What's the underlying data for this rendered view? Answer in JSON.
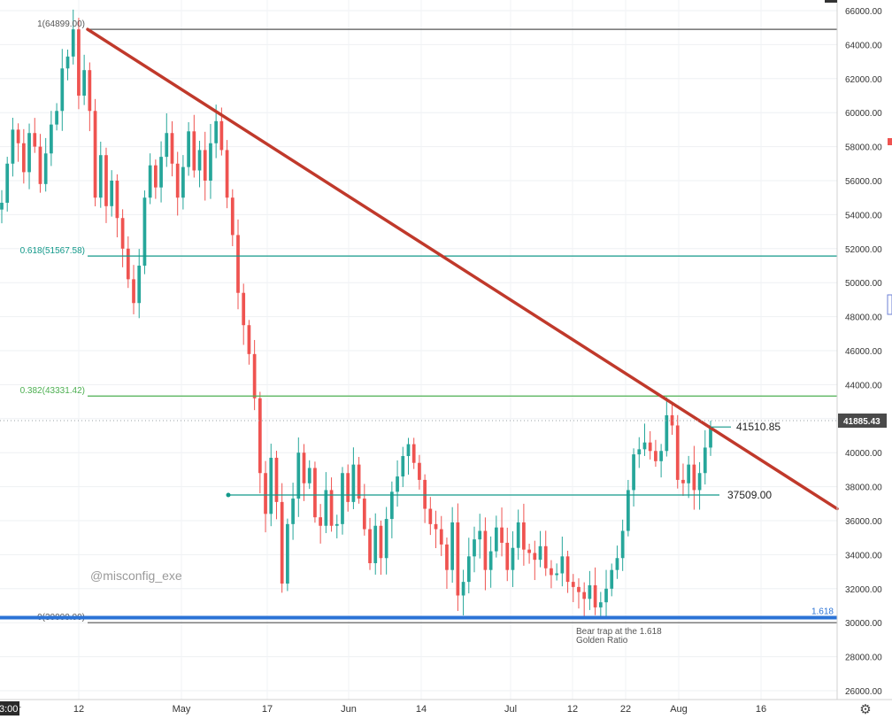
{
  "chart_data": {
    "type": "candlestick",
    "ylim": [
      25000,
      66500
    ],
    "y_ticks": [
      "26000.00",
      "28000.00",
      "30000.00",
      "32000.00",
      "34000.00",
      "36000.00",
      "38000.00",
      "40000.00",
      "42000.00",
      "44000.00",
      "46000.00",
      "48000.00",
      "50000.00",
      "52000.00",
      "54000.00",
      "56000.00",
      "58000.00",
      "60000.00",
      "62000.00",
      "64000.00",
      "66000.00"
    ],
    "y_tick_values": [
      26000,
      28000,
      30000,
      32000,
      34000,
      36000,
      38000,
      40000,
      42000,
      44000,
      46000,
      48000,
      50000,
      52000,
      54000,
      56000,
      58000,
      60000,
      62000,
      64000,
      66000
    ],
    "x_ticks": [
      "12",
      "May",
      "17",
      "Jun",
      "14",
      "Jul",
      "12",
      "22",
      "Aug",
      "16"
    ],
    "x_edge_labels": [
      "r",
      "3:00"
    ],
    "current_price": "41885.43",
    "price_series": [
      54700,
      57000,
      59000,
      58200,
      56500,
      58800,
      58000,
      55800,
      57600,
      59300,
      60100,
      62600,
      63300,
      64899,
      61000,
      62500,
      60100,
      55000,
      57500,
      54500,
      56000,
      53800,
      52000,
      50200,
      48800,
      51000,
      55000,
      56900,
      55600,
      57400,
      58800,
      57000,
      55000,
      56800,
      58900,
      56600,
      57800,
      56000,
      58200,
      59500,
      57800,
      55000,
      52800,
      49400,
      47500,
      45800,
      43200,
      38800,
      36400,
      39700,
      37100,
      32300,
      35800,
      37300,
      40000,
      38200,
      39100,
      36200,
      35700,
      37800,
      35700,
      35800,
      38800,
      37100,
      39300,
      37300,
      35500,
      33500,
      35700,
      33800,
      36100,
      37700,
      38600,
      39800,
      40500,
      39400,
      38400,
      36700,
      35800,
      35500,
      34600,
      33100,
      35900,
      31600,
      32400,
      33900,
      34900,
      35400,
      33100,
      34200,
      35600,
      34700,
      33100,
      34400,
      35900,
      34300,
      34100,
      33700,
      34500,
      33200,
      32800,
      32900,
      33900,
      32400,
      32100,
      31800,
      31400,
      32200,
      30900,
      31200,
      32000,
      33100,
      33800,
      35400,
      37800,
      39900,
      40200,
      40600,
      40100,
      39500,
      40100,
      42200,
      41600,
      38400,
      38200,
      39300,
      37800,
      38800,
      40300,
      41500
    ],
    "fib_levels": [
      {
        "label": "1(64899.00)",
        "value": 64899,
        "color": "#555555"
      },
      {
        "label": "0.618(51567.58)",
        "value": 51568,
        "color": "#12998a"
      },
      {
        "label": "0.382(43331.42)",
        "value": 43331,
        "color": "#4caf50"
      },
      {
        "label": "0(30000.00)",
        "value": 30000,
        "color": "#555555"
      }
    ],
    "extension": {
      "label": "1.618",
      "value": 30300,
      "color": "#2b73d6"
    },
    "trendline": {
      "start_value": 64899,
      "end_value": 36700,
      "color": "#c0392b"
    },
    "horizontal_levels": [
      {
        "label": "41510.85",
        "value": 41510.85
      },
      {
        "label": "37509.00",
        "value": 37509
      }
    ],
    "annotation": [
      "Bear trap at the 1.618",
      "Golden Ratio"
    ],
    "watermark": "@misconfig_exe",
    "colors": {
      "up": "#26a69a",
      "down": "#ef5350",
      "current_price_bg": "#4a4a4a"
    }
  }
}
